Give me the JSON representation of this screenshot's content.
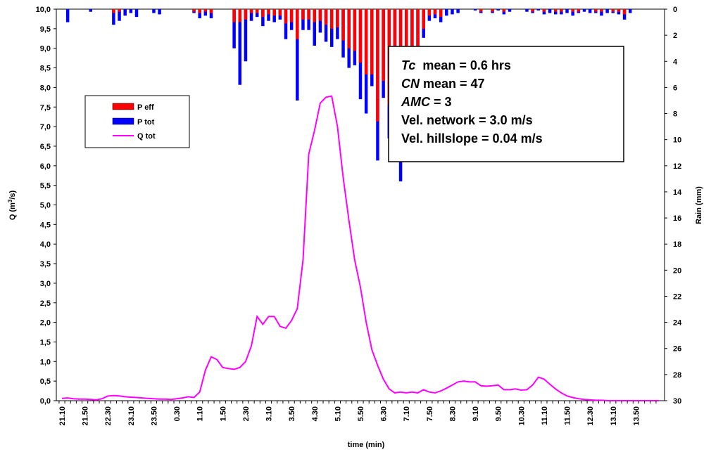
{
  "chart_data": {
    "type": "line+bar",
    "title": "",
    "xlabel": "time (min)",
    "ylabel_left": "Q (m",
    "ylabel_left_sup": "3",
    "ylabel_left_tail": "/s)",
    "ylabel_right": "Rain (mm)",
    "ylim_left": [
      0,
      10
    ],
    "ylim_right_inverted": [
      0,
      30
    ],
    "left_ticks": [
      "0,0",
      "0,5",
      "1,0",
      "1,5",
      "2,0",
      "2,5",
      "3,0",
      "3,5",
      "4,0",
      "4,5",
      "5,0",
      "5,5",
      "6,0",
      "6,5",
      "7,0",
      "7,5",
      "8,0",
      "8,5",
      "9,0",
      "9,5",
      "10,0"
    ],
    "right_ticks": [
      "0",
      "2",
      "4",
      "6",
      "8",
      "10",
      "12",
      "14",
      "16",
      "18",
      "20",
      "22",
      "24",
      "26",
      "28",
      "30"
    ],
    "x_labels": [
      "21.10",
      "21.50",
      "22.30",
      "23.10",
      "23.50",
      "0.30",
      "1.10",
      "1.50",
      "2.30",
      "3.10",
      "3.50",
      "4.30",
      "5.10",
      "5.50",
      "6.30",
      "7.10",
      "7.50",
      "8.30",
      "9.10",
      "9.50",
      "10.30",
      "11.10",
      "11.50",
      "12.30",
      "13.10",
      "13.50"
    ],
    "x_start_index": 0,
    "x_end_index": 104,
    "x_label_step": 4,
    "legend": [
      {
        "name": "P eff",
        "color": "#ff0000",
        "kind": "bar"
      },
      {
        "name": "P tot",
        "color": "#0000ff",
        "kind": "bar"
      },
      {
        "name": "Q tot",
        "color": "#ff00ff",
        "kind": "line"
      }
    ],
    "annotations": [
      {
        "italic": "Tc",
        "rest": "  mean = 0.6 hrs"
      },
      {
        "italic": "CN",
        "rest": " mean = 47"
      },
      {
        "italic": "AMC",
        "rest": " = 3"
      },
      {
        "italic": "",
        "rest": "Vel. network = 3.0 m/s"
      },
      {
        "italic": "",
        "rest": "Vel. hillslope = 0.04 m/s"
      }
    ],
    "q_tot": [
      [
        0,
        0.06
      ],
      [
        1,
        0.07
      ],
      [
        2,
        0.05
      ],
      [
        3,
        0.04
      ],
      [
        4,
        0.04
      ],
      [
        5,
        0.03
      ],
      [
        6,
        0.02
      ],
      [
        7,
        0.05
      ],
      [
        8,
        0.12
      ],
      [
        9,
        0.13
      ],
      [
        10,
        0.12
      ],
      [
        11,
        0.1
      ],
      [
        12,
        0.09
      ],
      [
        13,
        0.08
      ],
      [
        14,
        0.07
      ],
      [
        15,
        0.06
      ],
      [
        16,
        0.05
      ],
      [
        17,
        0.04
      ],
      [
        18,
        0.04
      ],
      [
        19,
        0.03
      ],
      [
        20,
        0.05
      ],
      [
        21,
        0.07
      ],
      [
        22,
        0.1
      ],
      [
        23,
        0.08
      ],
      [
        24,
        0.22
      ],
      [
        25,
        0.78
      ],
      [
        26,
        1.12
      ],
      [
        27,
        1.05
      ],
      [
        28,
        0.85
      ],
      [
        29,
        0.82
      ],
      [
        30,
        0.8
      ],
      [
        31,
        0.85
      ],
      [
        32,
        1.0
      ],
      [
        33,
        1.4
      ],
      [
        34,
        2.15
      ],
      [
        35,
        1.95
      ],
      [
        36,
        2.15
      ],
      [
        37,
        2.15
      ],
      [
        38,
        1.9
      ],
      [
        39,
        1.85
      ],
      [
        40,
        2.05
      ],
      [
        41,
        2.35
      ],
      [
        42,
        3.6
      ],
      [
        43,
        6.3
      ],
      [
        44,
        6.9
      ],
      [
        45,
        7.6
      ],
      [
        46,
        7.75
      ],
      [
        47,
        7.78
      ],
      [
        48,
        7.0
      ],
      [
        49,
        5.7
      ],
      [
        50,
        4.6
      ],
      [
        51,
        3.6
      ],
      [
        52,
        2.9
      ],
      [
        53,
        2.0
      ],
      [
        54,
        1.3
      ],
      [
        55,
        0.9
      ],
      [
        56,
        0.55
      ],
      [
        57,
        0.3
      ],
      [
        58,
        0.2
      ],
      [
        59,
        0.22
      ],
      [
        60,
        0.2
      ],
      [
        61,
        0.22
      ],
      [
        62,
        0.2
      ],
      [
        63,
        0.28
      ],
      [
        64,
        0.22
      ],
      [
        65,
        0.2
      ],
      [
        66,
        0.25
      ],
      [
        67,
        0.32
      ],
      [
        68,
        0.4
      ],
      [
        69,
        0.48
      ],
      [
        70,
        0.5
      ],
      [
        71,
        0.48
      ],
      [
        72,
        0.48
      ],
      [
        73,
        0.38
      ],
      [
        74,
        0.37
      ],
      [
        75,
        0.38
      ],
      [
        76,
        0.4
      ],
      [
        77,
        0.28
      ],
      [
        78,
        0.28
      ],
      [
        79,
        0.3
      ],
      [
        80,
        0.27
      ],
      [
        81,
        0.28
      ],
      [
        82,
        0.4
      ],
      [
        83,
        0.6
      ],
      [
        84,
        0.55
      ],
      [
        85,
        0.42
      ],
      [
        86,
        0.3
      ],
      [
        87,
        0.2
      ],
      [
        88,
        0.12
      ],
      [
        89,
        0.08
      ],
      [
        90,
        0.05
      ],
      [
        91,
        0.03
      ],
      [
        92,
        0.02
      ],
      [
        93,
        0.01
      ],
      [
        94,
        0.01
      ],
      [
        95,
        0.0
      ],
      [
        96,
        0.0
      ],
      [
        97,
        0.0
      ],
      [
        98,
        0.0
      ],
      [
        99,
        0.0
      ],
      [
        100,
        0.0
      ],
      [
        101,
        0.0
      ],
      [
        102,
        0.0
      ],
      [
        103,
        0.0
      ],
      [
        104,
        0.0
      ]
    ],
    "p_tot": [
      [
        1,
        1.0
      ],
      [
        5,
        0.2
      ],
      [
        9,
        1.2
      ],
      [
        10,
        0.9
      ],
      [
        11,
        0.5
      ],
      [
        12,
        0.3
      ],
      [
        13,
        0.6
      ],
      [
        16,
        0.3
      ],
      [
        17,
        0.4
      ],
      [
        23,
        0.3
      ],
      [
        24,
        0.7
      ],
      [
        25,
        0.5
      ],
      [
        26,
        0.7
      ],
      [
        30,
        3.0
      ],
      [
        31,
        5.8
      ],
      [
        32,
        4.0
      ],
      [
        33,
        0.9
      ],
      [
        34,
        0.6
      ],
      [
        35,
        1.3
      ],
      [
        36,
        0.9
      ],
      [
        37,
        1.0
      ],
      [
        38,
        0.8
      ],
      [
        39,
        2.3
      ],
      [
        40,
        1.6
      ],
      [
        41,
        7.0
      ],
      [
        42,
        1.6
      ],
      [
        43,
        1.6
      ],
      [
        44,
        2.8
      ],
      [
        45,
        1.8
      ],
      [
        46,
        2.5
      ],
      [
        47,
        2.9
      ],
      [
        48,
        2.3
      ],
      [
        49,
        3.7
      ],
      [
        50,
        4.5
      ],
      [
        51,
        4.3
      ],
      [
        52,
        6.9
      ],
      [
        53,
        8.0
      ],
      [
        54,
        5.9
      ],
      [
        55,
        11.6
      ],
      [
        56,
        6.8
      ],
      [
        57,
        9.9
      ],
      [
        58,
        3.2
      ],
      [
        59,
        13.2
      ],
      [
        60,
        5.5
      ],
      [
        61,
        8.2
      ],
      [
        62,
        7.0
      ],
      [
        63,
        2.2
      ],
      [
        64,
        0.9
      ],
      [
        65,
        0.7
      ],
      [
        66,
        1.0
      ],
      [
        67,
        0.5
      ],
      [
        68,
        0.4
      ],
      [
        69,
        0.3
      ],
      [
        72,
        0.1
      ],
      [
        73,
        0.3
      ],
      [
        75,
        0.3
      ],
      [
        76,
        0.1
      ],
      [
        77,
        0.4
      ],
      [
        78,
        0.2
      ],
      [
        81,
        0.2
      ],
      [
        82,
        0.3
      ],
      [
        83,
        0.1
      ],
      [
        84,
        0.4
      ],
      [
        85,
        0.3
      ],
      [
        86,
        0.4
      ],
      [
        87,
        0.4
      ],
      [
        88,
        0.3
      ],
      [
        89,
        0.5
      ],
      [
        90,
        0.3
      ],
      [
        91,
        0.2
      ],
      [
        92,
        0.3
      ],
      [
        93,
        0.3
      ],
      [
        94,
        0.5
      ],
      [
        95,
        0.3
      ],
      [
        96,
        0.3
      ],
      [
        97,
        0.4
      ],
      [
        98,
        0.8
      ],
      [
        99,
        0.3
      ]
    ],
    "p_eff": [
      [
        9,
        0.3
      ],
      [
        10,
        0.2
      ],
      [
        23,
        0.2
      ],
      [
        24,
        0.3
      ],
      [
        25,
        0.2
      ],
      [
        26,
        0.3
      ],
      [
        30,
        1.0
      ],
      [
        31,
        1.0
      ],
      [
        32,
        0.8
      ],
      [
        33,
        0.3
      ],
      [
        34,
        0.3
      ],
      [
        35,
        0.6
      ],
      [
        36,
        0.4
      ],
      [
        37,
        0.5
      ],
      [
        38,
        0.5
      ],
      [
        39,
        1.1
      ],
      [
        40,
        1.0
      ],
      [
        41,
        2.3
      ],
      [
        42,
        0.8
      ],
      [
        43,
        0.8
      ],
      [
        44,
        1.0
      ],
      [
        45,
        0.9
      ],
      [
        46,
        1.2
      ],
      [
        47,
        1.5
      ],
      [
        48,
        1.4
      ],
      [
        49,
        2.4
      ],
      [
        50,
        3.0
      ],
      [
        51,
        3.2
      ],
      [
        52,
        4.1
      ],
      [
        53,
        5.0
      ],
      [
        54,
        5.0
      ],
      [
        55,
        8.6
      ],
      [
        56,
        5.5
      ],
      [
        57,
        7.3
      ],
      [
        58,
        2.8
      ],
      [
        59,
        9.4
      ],
      [
        60,
        4.5
      ],
      [
        61,
        6.4
      ],
      [
        62,
        6.0
      ],
      [
        63,
        1.5
      ],
      [
        64,
        0.5
      ],
      [
        65,
        0.4
      ],
      [
        66,
        0.6
      ],
      [
        73,
        0.2
      ],
      [
        75,
        0.2
      ],
      [
        77,
        0.2
      ],
      [
        82,
        0.2
      ],
      [
        84,
        0.2
      ],
      [
        86,
        0.2
      ],
      [
        87,
        0.2
      ],
      [
        89,
        0.2
      ],
      [
        90,
        0.2
      ],
      [
        93,
        0.2
      ],
      [
        94,
        0.2
      ],
      [
        96,
        0.2
      ],
      [
        97,
        0.2
      ],
      [
        98,
        0.4
      ]
    ]
  }
}
